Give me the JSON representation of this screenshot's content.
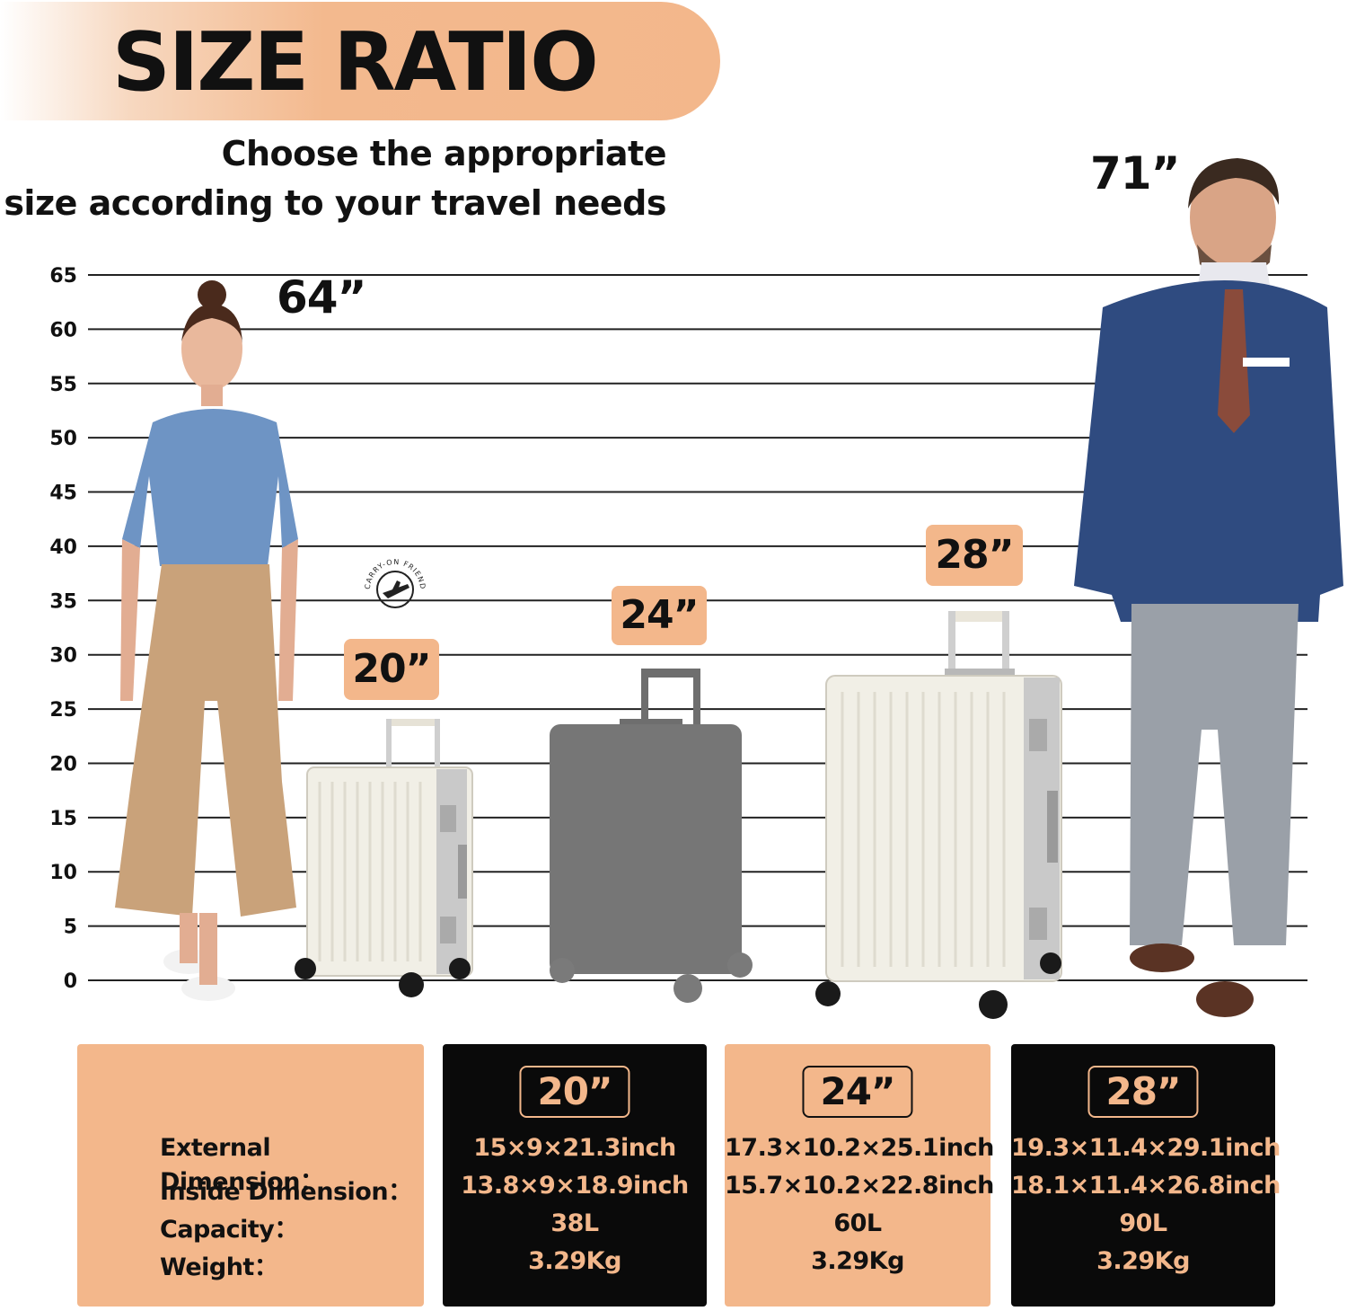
{
  "header": {
    "title": "SIZE RATIO",
    "subtitle_line1": "Choose the appropriate",
    "subtitle_line2": "size according to your travel needs"
  },
  "scale": {
    "ticks": [
      "65",
      "60",
      "55",
      "50",
      "45",
      "40",
      "35",
      "30",
      "25",
      "20",
      "15",
      "10",
      "5",
      "0"
    ]
  },
  "people": {
    "woman_height": "64”",
    "man_height": "71”"
  },
  "luggage": {
    "small_tag": "20”",
    "medium_tag": "24”",
    "large_tag": "28”",
    "stamp_text": "CARRY-ON FRIENDLY"
  },
  "specs": {
    "labels": [
      "External Dimension：",
      "Inside Dimension：",
      "Capacity：",
      "Weight："
    ],
    "columns": [
      {
        "size": "20”",
        "external": "15×9×21.3inch",
        "inside": "13.8×9×18.9inch",
        "capacity": "38L",
        "weight": "3.29Kg"
      },
      {
        "size": "24”",
        "external": "17.3×10.2×25.1inch",
        "inside": "15.7×10.2×22.8inch",
        "capacity": "60L",
        "weight": "3.29Kg"
      },
      {
        "size": "28”",
        "external": "19.3×11.4×29.1inch",
        "inside": "18.1×11.4×26.8inch",
        "capacity": "90L",
        "weight": "3.29Kg"
      }
    ]
  },
  "colors": {
    "accent": "#f3b78b",
    "dark": "#0a0a0a"
  }
}
